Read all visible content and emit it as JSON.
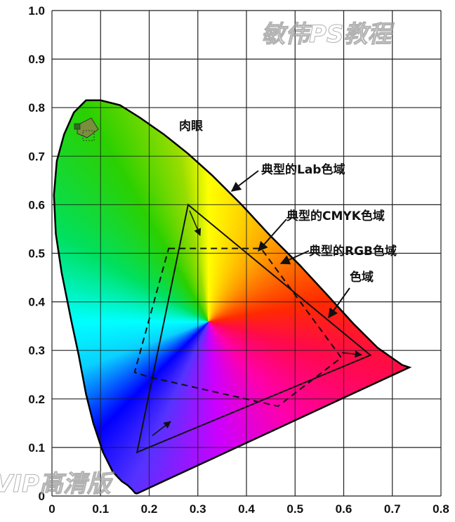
{
  "chart_data": {
    "type": "scatter",
    "title": "",
    "xlabel": "",
    "ylabel": "",
    "xlim": [
      0,
      0.8
    ],
    "ylim": [
      0,
      1.0
    ],
    "grid": true,
    "x_ticks": [
      "0",
      "0.1",
      "0.2",
      "0.3",
      "0.4",
      "0.5",
      "0.6",
      "0.7",
      "0.8"
    ],
    "y_ticks": [
      "0",
      "0.1",
      "0.2",
      "0.3",
      "0.4",
      "0.5",
      "0.6",
      "0.7",
      "0.8",
      "0.9",
      "1.0"
    ],
    "spectral_locus": [
      [
        0.175,
        0.005
      ],
      [
        0.171,
        0.006
      ],
      [
        0.165,
        0.013
      ],
      [
        0.156,
        0.022
      ],
      [
        0.144,
        0.03
      ],
      [
        0.125,
        0.05
      ],
      [
        0.105,
        0.09
      ],
      [
        0.085,
        0.15
      ],
      [
        0.07,
        0.21
      ],
      [
        0.055,
        0.29
      ],
      [
        0.04,
        0.36
      ],
      [
        0.02,
        0.46
      ],
      [
        0.008,
        0.54
      ],
      [
        0.004,
        0.62
      ],
      [
        0.01,
        0.69
      ],
      [
        0.025,
        0.745
      ],
      [
        0.045,
        0.79
      ],
      [
        0.07,
        0.815
      ],
      [
        0.1,
        0.815
      ],
      [
        0.14,
        0.805
      ],
      [
        0.18,
        0.78
      ],
      [
        0.23,
        0.745
      ],
      [
        0.28,
        0.705
      ],
      [
        0.33,
        0.66
      ],
      [
        0.39,
        0.6
      ],
      [
        0.45,
        0.535
      ],
      [
        0.51,
        0.475
      ],
      [
        0.57,
        0.41
      ],
      [
        0.62,
        0.355
      ],
      [
        0.67,
        0.305
      ],
      [
        0.72,
        0.27
      ],
      [
        0.735,
        0.265
      ]
    ],
    "series": [
      {
        "name": "典型的RGB色域",
        "style": "solid",
        "points": [
          [
            0.175,
            0.09
          ],
          [
            0.28,
            0.6
          ],
          [
            0.655,
            0.29
          ]
        ]
      },
      {
        "name": "典型的CMYK色域",
        "style": "dashed",
        "points": [
          [
            0.24,
            0.51
          ],
          [
            0.43,
            0.51
          ],
          [
            0.595,
            0.285
          ],
          [
            0.465,
            0.185
          ],
          [
            0.2,
            0.245
          ],
          [
            0.17,
            0.255
          ]
        ]
      }
    ],
    "annotations": [
      {
        "text": "肉眼"
      },
      {
        "text": "典型的Lab色域"
      },
      {
        "text": "典型的CMYK色域"
      },
      {
        "text": "典型的RGB色域"
      },
      {
        "text": "色域"
      }
    ],
    "watermarks": [
      "敏伟PS教程",
      "VIP高清版"
    ]
  }
}
